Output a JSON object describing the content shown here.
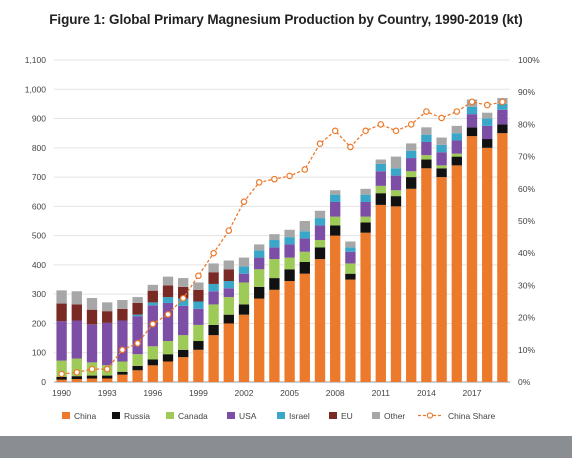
{
  "chart_data": {
    "type": "bar",
    "stacked": true,
    "title": "Figure 1: Global Primary Magnesium Production by Country, 1990-2019 (kt)",
    "x": [
      1990,
      1991,
      1992,
      1993,
      1994,
      1995,
      1996,
      1997,
      1998,
      1999,
      2000,
      2001,
      2002,
      2003,
      2004,
      2005,
      2006,
      2007,
      2008,
      2009,
      2010,
      2011,
      2012,
      2013,
      2014,
      2015,
      2016,
      2017,
      2018,
      2019
    ],
    "x_tick_labels": [
      "1990",
      "1993",
      "1996",
      "1999",
      "2002",
      "2005",
      "2008",
      "2011",
      "2014",
      "2017"
    ],
    "ylim": [
      0,
      1100
    ],
    "y_tick_labels": [
      "0",
      "100",
      "200",
      "300",
      "400",
      "500",
      "600",
      "700",
      "800",
      "900",
      "1,000",
      "1,100"
    ],
    "y2lim": [
      0,
      100
    ],
    "y2_tick_labels": [
      "0%",
      "10%",
      "20%",
      "30%",
      "40%",
      "50%",
      "60%",
      "70%",
      "80%",
      "90%",
      "100%"
    ],
    "legend_position": "bottom",
    "series": [
      {
        "name": "China",
        "color": "#ec7a2c",
        "values": [
          8,
          10,
          12,
          12,
          25,
          40,
          57,
          70,
          85,
          110,
          160,
          200,
          230,
          285,
          315,
          345,
          370,
          420,
          500,
          350,
          510,
          605,
          600,
          660,
          730,
          700,
          740,
          840,
          800,
          850
        ]
      },
      {
        "name": "Russia",
        "color": "#111111",
        "values": [
          10,
          10,
          10,
          10,
          10,
          15,
          20,
          25,
          25,
          30,
          35,
          30,
          35,
          40,
          40,
          40,
          40,
          40,
          35,
          20,
          35,
          40,
          35,
          40,
          30,
          30,
          30,
          30,
          30,
          30
        ]
      },
      {
        "name": "Canada",
        "color": "#9ecb58",
        "values": [
          55,
          60,
          45,
          35,
          35,
          40,
          45,
          45,
          50,
          55,
          70,
          60,
          75,
          60,
          65,
          40,
          35,
          25,
          30,
          35,
          20,
          25,
          20,
          20,
          15,
          10,
          10,
          0,
          0,
          0
        ]
      },
      {
        "name": "USA",
        "color": "#7d4ea5",
        "values": [
          135,
          130,
          130,
          145,
          140,
          130,
          140,
          130,
          100,
          55,
          45,
          30,
          30,
          40,
          40,
          45,
          45,
          50,
          50,
          40,
          50,
          50,
          50,
          45,
          45,
          45,
          45,
          45,
          45,
          50
        ]
      },
      {
        "name": "Israel",
        "color": "#3aa7c9",
        "values": [
          0,
          0,
          0,
          0,
          0,
          5,
          10,
          20,
          25,
          25,
          25,
          25,
          25,
          25,
          25,
          25,
          25,
          25,
          25,
          15,
          25,
          25,
          25,
          25,
          25,
          25,
          25,
          25,
          25,
          20
        ]
      },
      {
        "name": "EU",
        "color": "#7a2a24",
        "values": [
          60,
          55,
          50,
          40,
          40,
          40,
          40,
          40,
          40,
          40,
          40,
          40,
          0,
          0,
          0,
          0,
          0,
          0,
          0,
          0,
          0,
          0,
          0,
          0,
          0,
          0,
          0,
          0,
          0,
          0
        ]
      },
      {
        "name": "Other",
        "color": "#a7a7a7",
        "values": [
          45,
          45,
          40,
          30,
          30,
          20,
          20,
          30,
          30,
          25,
          30,
          30,
          30,
          20,
          20,
          25,
          35,
          25,
          15,
          20,
          20,
          15,
          40,
          25,
          25,
          25,
          25,
          25,
          20,
          20
        ]
      }
    ],
    "line_series": {
      "name": "China Share",
      "color": "#ec7a2c",
      "axis": "secondary",
      "values": [
        2.5,
        3,
        4,
        4,
        10,
        12,
        18,
        21,
        26,
        33,
        40,
        47,
        56,
        62,
        63,
        64,
        66,
        74,
        78,
        73,
        78,
        80,
        78,
        80,
        84,
        82,
        84,
        87,
        86,
        87
      ]
    }
  }
}
